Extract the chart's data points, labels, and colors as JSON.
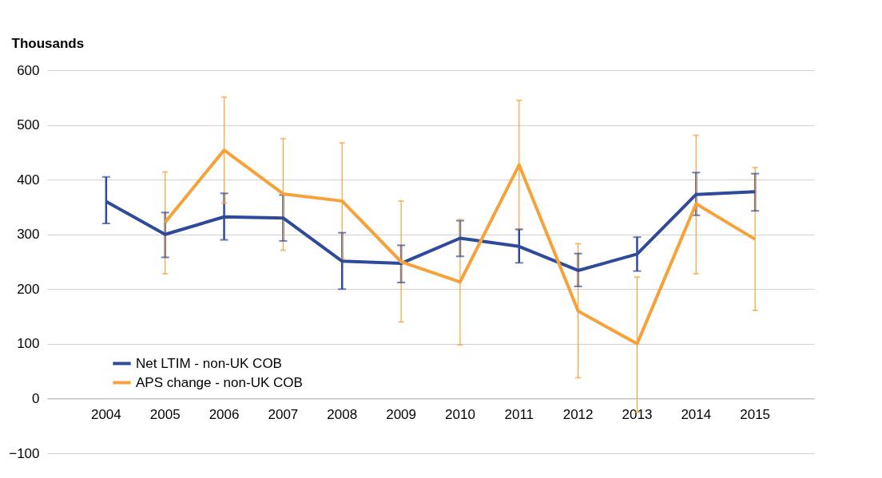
{
  "chart_data": {
    "type": "line",
    "ylabel": "Thousands",
    "categories": [
      "2004",
      "2005",
      "2006",
      "2007",
      "2008",
      "2009",
      "2010",
      "2011",
      "2012",
      "2013",
      "2014",
      "2015"
    ],
    "series": [
      {
        "name": "Net LTIM - non-UK COB",
        "color": "#2e4a9a",
        "values": [
          360,
          300,
          332,
          330,
          251,
          247,
          293,
          278,
          234,
          264,
          373,
          378
        ],
        "errors": [
          [
            320,
            405
          ],
          [
            258,
            340
          ],
          [
            290,
            375
          ],
          [
            288,
            372
          ],
          [
            200,
            303
          ],
          [
            212,
            280
          ],
          [
            260,
            325
          ],
          [
            248,
            309
          ],
          [
            205,
            265
          ],
          [
            233,
            295
          ],
          [
            335,
            413
          ],
          [
            343,
            411
          ]
        ]
      },
      {
        "name": "APS change - non-UK COB",
        "color": "#f7a239",
        "values": [
          null,
          322,
          454,
          374,
          361,
          250,
          213,
          427,
          160,
          100,
          356,
          291
        ],
        "errors": [
          null,
          [
            228,
            414
          ],
          [
            357,
            551
          ],
          [
            271,
            475
          ],
          [
            255,
            467
          ],
          [
            140,
            361
          ],
          [
            98,
            327
          ],
          [
            310,
            545
          ],
          [
            38,
            283
          ],
          [
            -25,
            222
          ],
          [
            228,
            481
          ],
          [
            161,
            422
          ]
        ]
      }
    ],
    "ylim": [
      -100,
      600
    ],
    "yticks": [
      -100,
      0,
      100,
      200,
      300,
      400,
      500,
      600
    ],
    "grid": "y",
    "legend": "bottom left",
    "marker": "none",
    "line_style": "solid"
  }
}
